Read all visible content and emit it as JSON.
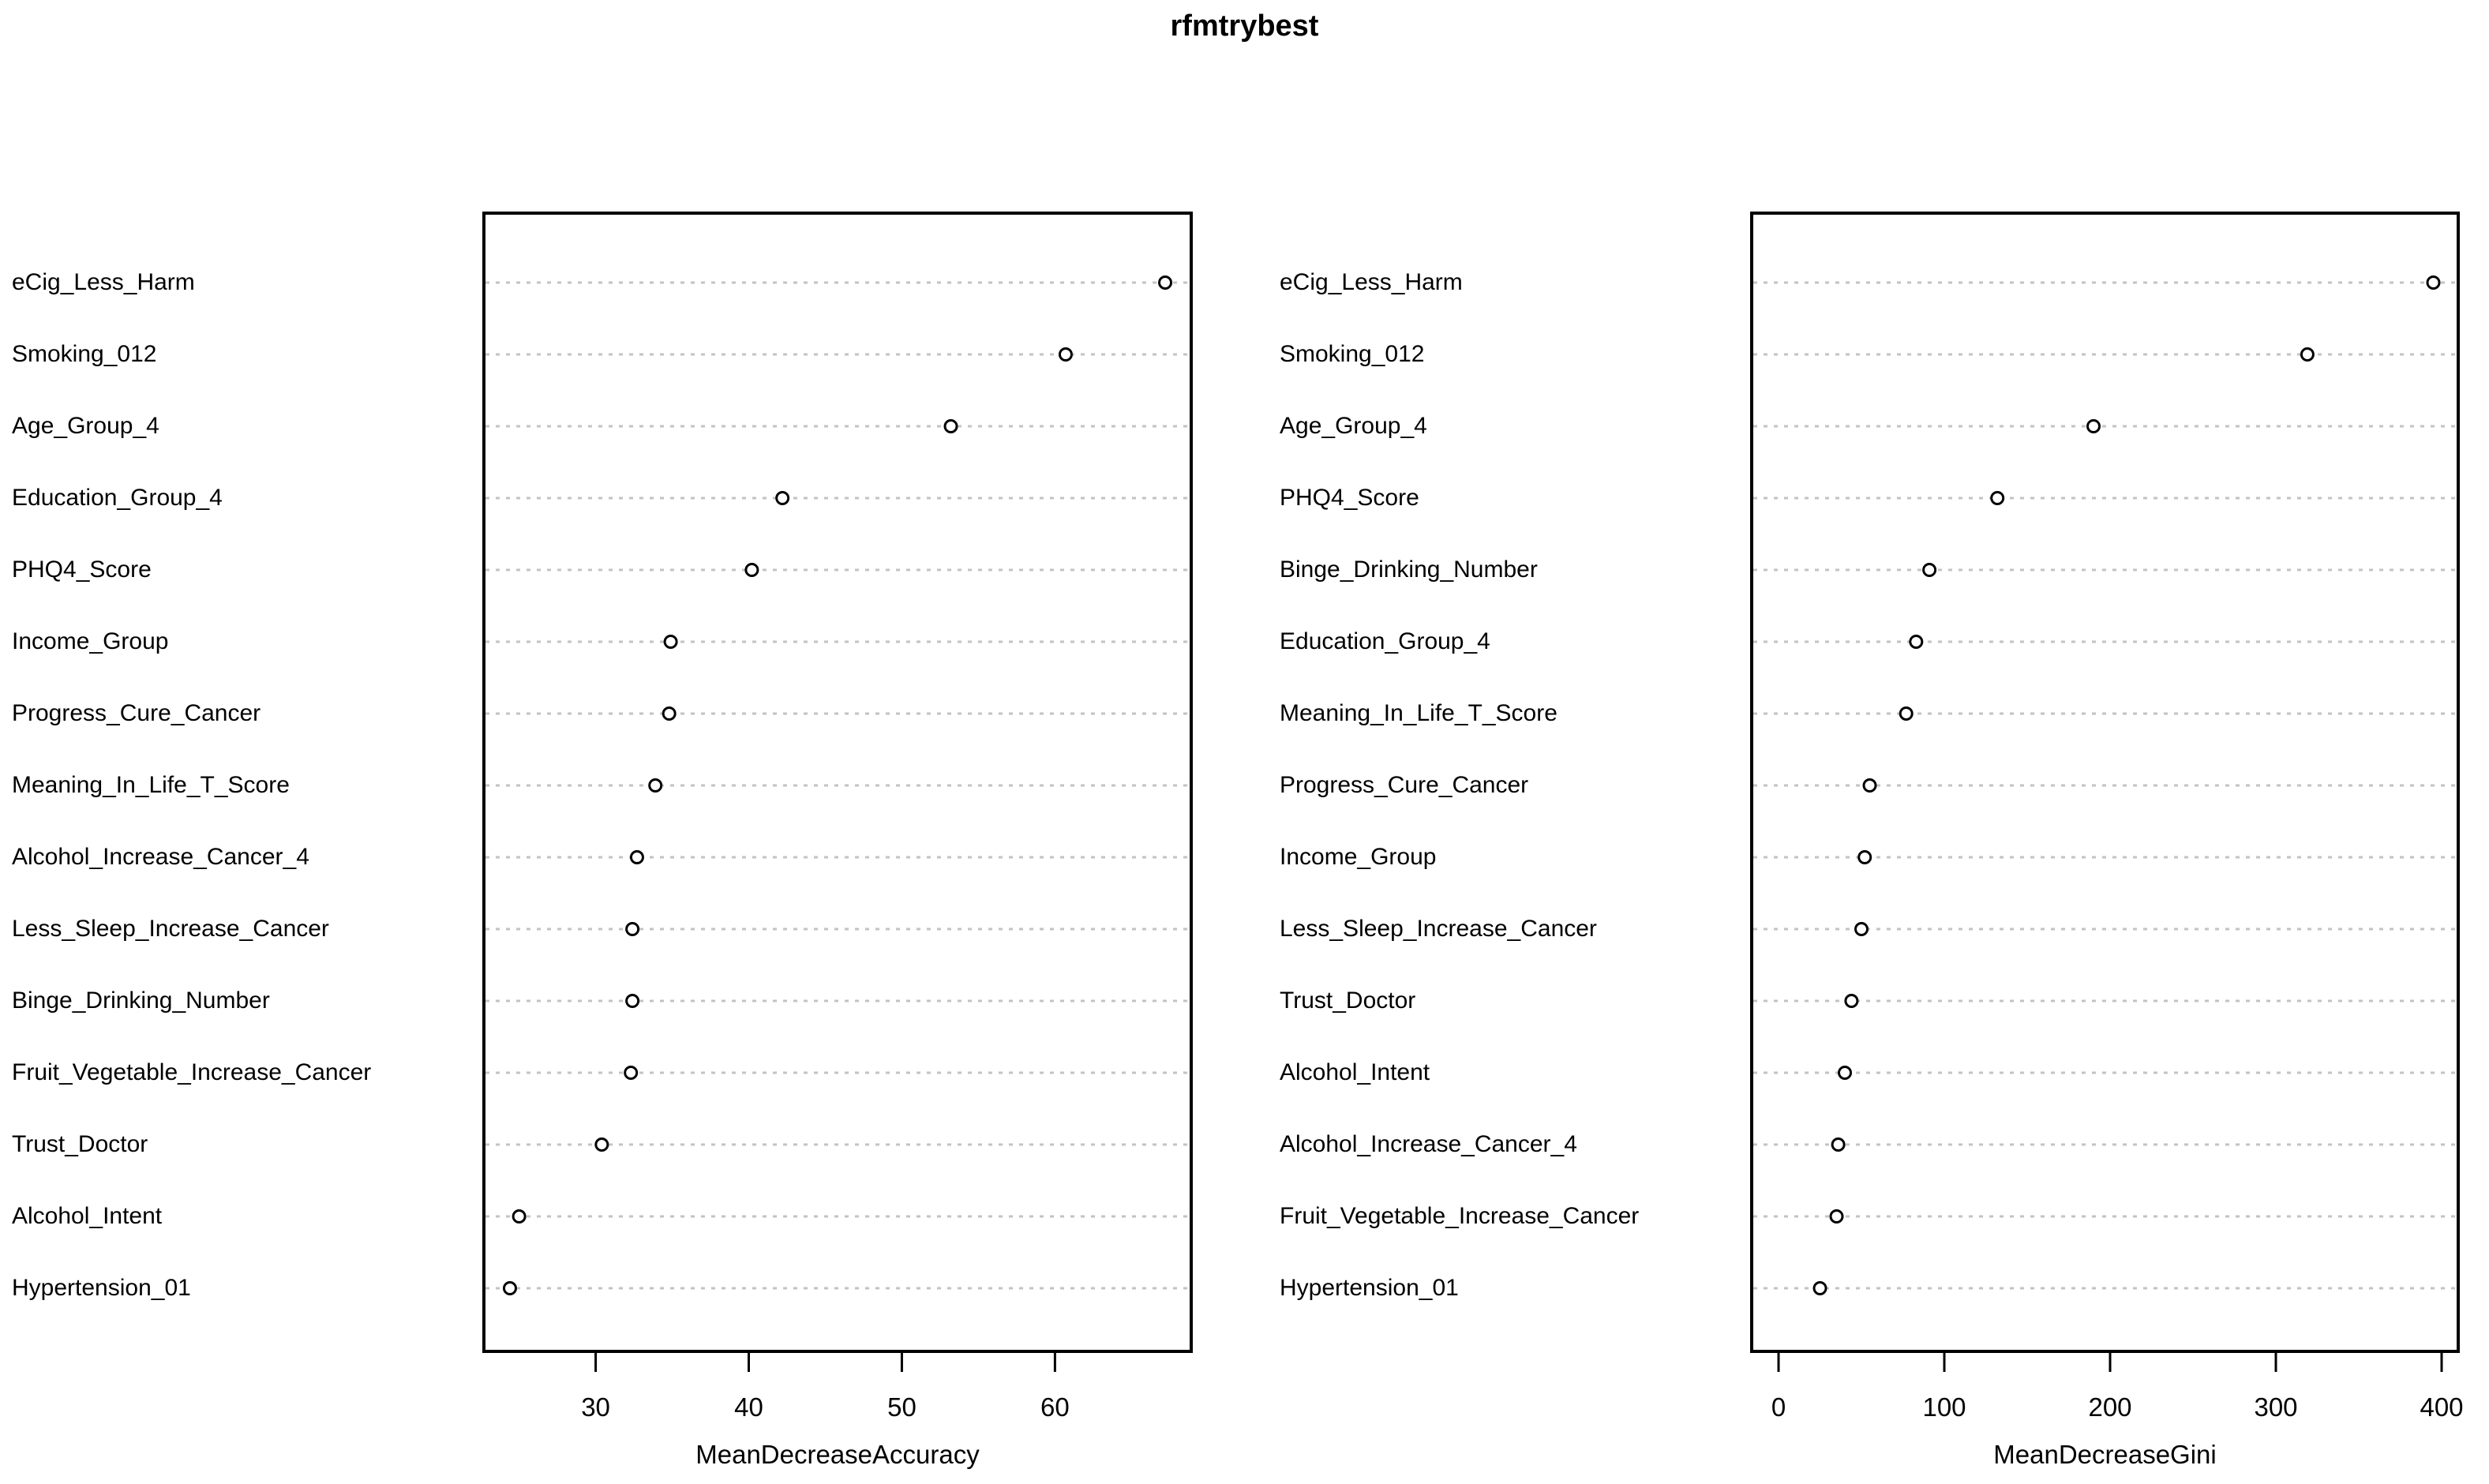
{
  "title": "rfmtrybest",
  "colors": {
    "background": "#ffffff",
    "text": "#000000",
    "box_border": "#000000",
    "grid_line": "#c3c3c3",
    "point_stroke": "#000000",
    "point_fill": "#ffffff"
  },
  "chart_data": [
    {
      "type": "scatter",
      "subtype": "dot-chart",
      "panel": "left",
      "xlabel": "MeanDecreaseAccuracy",
      "xticks": [
        30,
        40,
        50,
        60
      ],
      "xlim": [
        22.7,
        68.9
      ],
      "grid": "dotted-horizontal",
      "legend": "none",
      "points": [
        {
          "label": "eCig_Less_Harm",
          "value": 67.2
        },
        {
          "label": "Smoking_012",
          "value": 60.7
        },
        {
          "label": "Age_Group_4",
          "value": 53.2
        },
        {
          "label": "Education_Group_4",
          "value": 42.2
        },
        {
          "label": "PHQ4_Score",
          "value": 40.2
        },
        {
          "label": "Income_Group",
          "value": 34.9
        },
        {
          "label": "Progress_Cure_Cancer",
          "value": 34.8
        },
        {
          "label": "Meaning_In_Life_T_Score",
          "value": 33.9
        },
        {
          "label": "Alcohol_Increase_Cancer_4",
          "value": 32.7
        },
        {
          "label": "Less_Sleep_Increase_Cancer",
          "value": 32.4
        },
        {
          "label": "Binge_Drinking_Number",
          "value": 32.4
        },
        {
          "label": "Fruit_Vegetable_Increase_Cancer",
          "value": 32.3
        },
        {
          "label": "Trust_Doctor",
          "value": 30.4
        },
        {
          "label": "Alcohol_Intent",
          "value": 25.0
        },
        {
          "label": "Hypertension_01",
          "value": 24.4
        }
      ]
    },
    {
      "type": "scatter",
      "subtype": "dot-chart",
      "panel": "right",
      "xlabel": "MeanDecreaseGini",
      "xticks": [
        0,
        100,
        200,
        300,
        400
      ],
      "xlim": [
        -16.2,
        410
      ],
      "grid": "dotted-horizontal",
      "legend": "none",
      "points": [
        {
          "label": "eCig_Less_Harm",
          "value": 395
        },
        {
          "label": "Smoking_012",
          "value": 319
        },
        {
          "label": "Age_Group_4",
          "value": 190
        },
        {
          "label": "PHQ4_Score",
          "value": 132
        },
        {
          "label": "Binge_Drinking_Number",
          "value": 91
        },
        {
          "label": "Education_Group_4",
          "value": 83
        },
        {
          "label": "Meaning_In_Life_T_Score",
          "value": 77
        },
        {
          "label": "Progress_Cure_Cancer",
          "value": 55
        },
        {
          "label": "Income_Group",
          "value": 52
        },
        {
          "label": "Less_Sleep_Increase_Cancer",
          "value": 50
        },
        {
          "label": "Trust_Doctor",
          "value": 44
        },
        {
          "label": "Alcohol_Intent",
          "value": 40
        },
        {
          "label": "Alcohol_Increase_Cancer_4",
          "value": 36
        },
        {
          "label": "Fruit_Vegetable_Increase_Cancer",
          "value": 35
        },
        {
          "label": "Hypertension_01",
          "value": 25
        }
      ]
    }
  ]
}
